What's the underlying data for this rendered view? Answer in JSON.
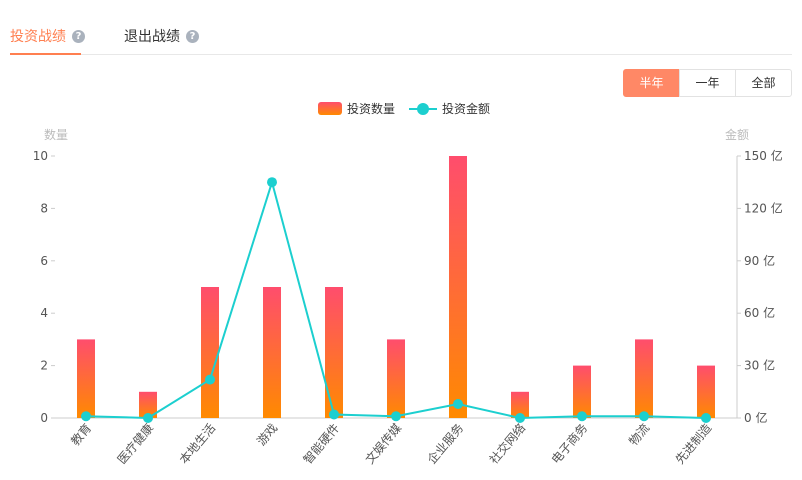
{
  "tabs": [
    {
      "label": "投资战绩",
      "help": "?"
    },
    {
      "label": "退出战绩",
      "help": "?"
    }
  ],
  "range_buttons": [
    "半年",
    "一年",
    "全部"
  ],
  "active_range": "半年",
  "legend": {
    "bar": "投资数量",
    "line": "投资金额"
  },
  "colors": {
    "accent": "#ff7f50",
    "bar_top": "#ff4d6d",
    "bar_bottom": "#ff8a00",
    "line": "#1ccfcf"
  },
  "chart_data": {
    "type": "bar",
    "categories": [
      "教育",
      "医疗健康",
      "本地生活",
      "游戏",
      "智能硬件",
      "文娱传媒",
      "企业服务",
      "社交网络",
      "电子商务",
      "物流",
      "先进制造"
    ],
    "series": [
      {
        "name": "投资数量",
        "type": "bar",
        "axis": "left",
        "values": [
          3,
          1,
          5,
          5,
          5,
          3,
          10,
          1,
          2,
          3,
          2
        ]
      },
      {
        "name": "投资金额",
        "type": "line",
        "axis": "right",
        "values": [
          1,
          0,
          22,
          135,
          2,
          1,
          8,
          0,
          1,
          1,
          0
        ]
      }
    ],
    "ylabel": "数量",
    "y2label": "金额",
    "ylim": [
      0,
      10
    ],
    "y2lim": [
      0,
      150
    ],
    "yticks": [
      "0",
      "2",
      "4",
      "6",
      "8",
      "10"
    ],
    "y2ticks": [
      "0 亿",
      "30 亿",
      "60 亿",
      "90 亿",
      "120 亿",
      "150 亿"
    ],
    "grid": false
  }
}
